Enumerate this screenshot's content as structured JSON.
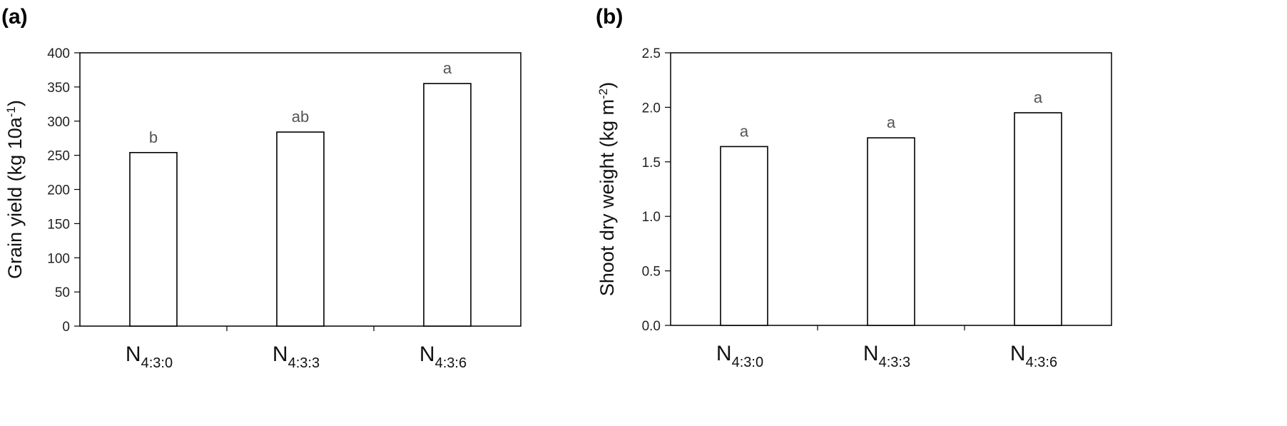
{
  "chart_data": [
    {
      "panel": "(a)",
      "type": "bar",
      "categories": [
        {
          "main": "N",
          "sub": "4:3:0"
        },
        {
          "main": "N",
          "sub": "4:3:3"
        },
        {
          "main": "N",
          "sub": "4:3:6"
        }
      ],
      "values": [
        254,
        284,
        355
      ],
      "significance": [
        "b",
        "ab",
        "a"
      ],
      "ylabel": {
        "text": "Grain yield (kg 10a",
        "sup": "-1",
        "end": ")"
      },
      "ylim": [
        0,
        400
      ],
      "yticks": [
        0,
        50,
        100,
        150,
        200,
        250,
        300,
        350,
        400
      ],
      "ytick_labels": [
        "0",
        "50",
        "100",
        "150",
        "200",
        "250",
        "300",
        "350",
        "400"
      ],
      "grid": false
    },
    {
      "panel": "(b)",
      "type": "bar",
      "categories": [
        {
          "main": "N",
          "sub": "4:3:0"
        },
        {
          "main": "N",
          "sub": "4:3:3"
        },
        {
          "main": "N",
          "sub": "4:3:6"
        }
      ],
      "values": [
        1.64,
        1.72,
        1.95
      ],
      "significance": [
        "a",
        "a",
        "a"
      ],
      "ylabel": {
        "text": "Shoot dry weight (kg m",
        "sup": "-2",
        "end": ")"
      },
      "ylim": [
        0,
        2.5
      ],
      "yticks": [
        0,
        0.5,
        1.0,
        1.5,
        2.0,
        2.5
      ],
      "ytick_labels": [
        "0.0",
        "0.5",
        "1.0",
        "1.5",
        "2.0",
        "2.5"
      ],
      "grid": false
    }
  ]
}
